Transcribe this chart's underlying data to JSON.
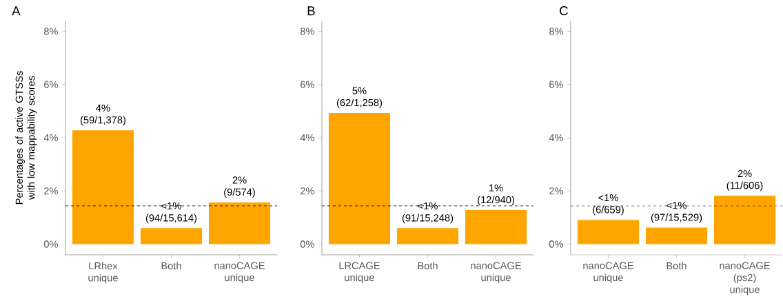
{
  "chart_data": [
    {
      "type": "bar",
      "title": "A",
      "ylabel": "Percentages of active GTSSs with low mappability scores",
      "categories": [
        "LRhex unique",
        "Both",
        "nanoCAGE unique"
      ],
      "values": [
        4.28,
        0.6,
        1.57
      ],
      "color": "#ffa500",
      "value_labels": [
        "4% (59/1,378)",
        "<1% (94/15,614)",
        "2% (9/574)"
      ],
      "ylim": [
        -0.4,
        8.4
      ],
      "yticks": [
        {
          "value": 0,
          "label": "0%"
        },
        {
          "value": 2,
          "label": "2%"
        },
        {
          "value": 4,
          "label": "4%"
        },
        {
          "value": 6,
          "label": "6%"
        },
        {
          "value": 8,
          "label": "8%"
        }
      ],
      "ref_lines": [
        {
          "axis": "y",
          "value": 1.44,
          "line_style": "dashed",
          "color": "#000000"
        }
      ]
    },
    {
      "type": "bar",
      "title": "B",
      "categories": [
        "LRCAGE unique",
        "Both",
        "nanoCAGE unique"
      ],
      "values": [
        4.93,
        0.6,
        1.28
      ],
      "color": "#ffa500",
      "value_labels": [
        "5% (62/1,258)",
        "<1% (91/15,248)",
        "1% (12/940)"
      ],
      "ylim": [
        -0.4,
        8.4
      ],
      "yticks": [
        {
          "value": 0,
          "label": "0%"
        },
        {
          "value": 2,
          "label": "2%"
        },
        {
          "value": 4,
          "label": "4%"
        },
        {
          "value": 6,
          "label": "6%"
        },
        {
          "value": 8,
          "label": "8%"
        }
      ],
      "ref_lines": [
        {
          "axis": "y",
          "value": 1.44,
          "line_style": "dashed",
          "color": "#000000"
        }
      ]
    },
    {
      "type": "bar",
      "title": "C",
      "categories": [
        "nanoCAGE unique",
        "Both",
        "nanoCAGE (ps2) unique"
      ],
      "values": [
        0.91,
        0.62,
        1.82
      ],
      "color": "#ffa500",
      "value_labels": [
        "<1% (6/659)",
        "<1% (97/15,529)",
        "2% (11/606)"
      ],
      "ylim": [
        -0.4,
        8.4
      ],
      "yticks": [
        {
          "value": 0,
          "label": "0%"
        },
        {
          "value": 2,
          "label": "2%"
        },
        {
          "value": 4,
          "label": "4%"
        },
        {
          "value": 6,
          "label": "6%"
        },
        {
          "value": 8,
          "label": "8%"
        }
      ],
      "ref_lines": [
        {
          "axis": "y",
          "value": 1.44,
          "line_style": "dashed",
          "color": "#000000"
        }
      ]
    }
  ]
}
